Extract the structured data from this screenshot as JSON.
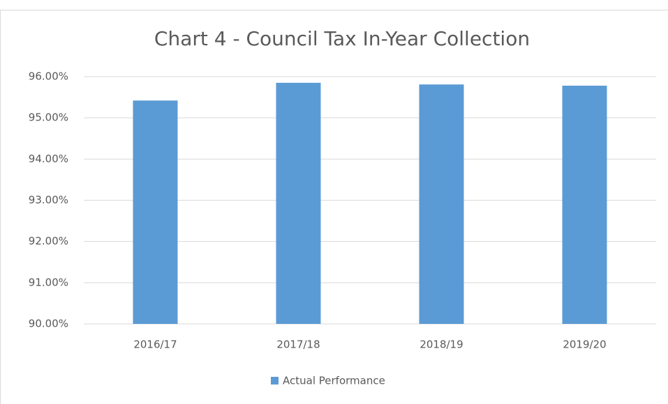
{
  "chart_data": {
    "type": "bar",
    "title": "Chart 4 - Council Tax In-Year Collection",
    "categories": [
      "2016/17",
      "2017/18",
      "2018/19",
      "2019/20"
    ],
    "series": [
      {
        "name": "Actual Performance",
        "color": "#5b9bd5",
        "values": [
          95.42,
          95.85,
          95.81,
          95.78
        ]
      }
    ],
    "ylim": [
      90,
      96
    ],
    "yticks": [
      {
        "value": 90,
        "label": "90.00%"
      },
      {
        "value": 91,
        "label": "91.00%"
      },
      {
        "value": 92,
        "label": "92.00%"
      },
      {
        "value": 93,
        "label": "93.00%"
      },
      {
        "value": 94,
        "label": "94.00%"
      },
      {
        "value": 95,
        "label": "95.00%"
      },
      {
        "value": 96,
        "label": "96.00%"
      }
    ],
    "grid": true,
    "legend": "bottom"
  }
}
